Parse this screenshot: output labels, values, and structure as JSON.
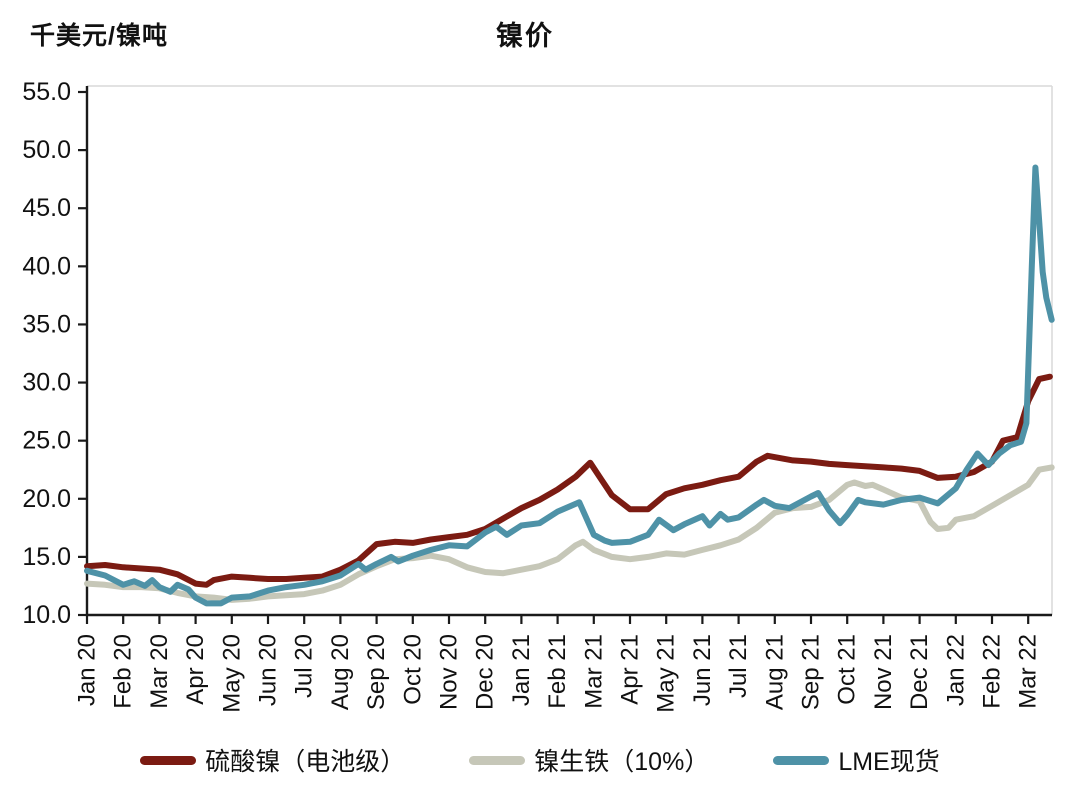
{
  "header": {
    "unit_label": "千美元/镍吨",
    "title": "镍价"
  },
  "chart_data": {
    "type": "line",
    "title": "镍价",
    "ylabel": "千美元/镍吨",
    "ylim": [
      10,
      55
    ],
    "ytick_step": 5,
    "ytick_labels": [
      "10.0",
      "15.0",
      "20.0",
      "25.0",
      "30.0",
      "35.0",
      "40.0",
      "45.0",
      "50.0",
      "55.0"
    ],
    "grid": false,
    "legend_position": "bottom",
    "x_categories": [
      "Jan 20",
      "Feb 20",
      "Mar 20",
      "Apr 20",
      "May 20",
      "Jun 20",
      "Jul 20",
      "Aug 20",
      "Sep 20",
      "Oct 20",
      "Nov 20",
      "Dec 20",
      "Jan 21",
      "Feb 21",
      "Mar 21",
      "Apr 21",
      "May 21",
      "Jun 21",
      "Jul 21",
      "Aug 21",
      "Sep 21",
      "Oct 21",
      "Nov 21",
      "Dec 21",
      "Jan 22",
      "Feb 22",
      "Mar 22"
    ],
    "x_unit": "month_index_from_Jan20",
    "series": [
      {
        "key": "nickel-sulfate-battery-grade",
        "name": "硫酸镍（电池级）",
        "color": "#7B1B12",
        "points": [
          [
            0,
            14.2
          ],
          [
            0.5,
            14.3
          ],
          [
            1,
            14.1
          ],
          [
            1.5,
            14.0
          ],
          [
            2,
            13.9
          ],
          [
            2.5,
            13.5
          ],
          [
            3,
            12.7
          ],
          [
            3.3,
            12.6
          ],
          [
            3.5,
            13.0
          ],
          [
            4,
            13.3
          ],
          [
            4.5,
            13.2
          ],
          [
            5,
            13.1
          ],
          [
            5.5,
            13.1
          ],
          [
            6,
            13.2
          ],
          [
            6.5,
            13.3
          ],
          [
            7,
            13.9
          ],
          [
            7.5,
            14.7
          ],
          [
            8,
            16.1
          ],
          [
            8.5,
            16.3
          ],
          [
            9,
            16.2
          ],
          [
            9.5,
            16.5
          ],
          [
            10,
            16.7
          ],
          [
            10.5,
            16.9
          ],
          [
            11,
            17.4
          ],
          [
            11.5,
            18.3
          ],
          [
            12,
            19.2
          ],
          [
            12.5,
            19.9
          ],
          [
            13,
            20.8
          ],
          [
            13.5,
            21.9
          ],
          [
            13.9,
            23.1
          ],
          [
            14.2,
            21.7
          ],
          [
            14.5,
            20.3
          ],
          [
            15,
            19.1
          ],
          [
            15.5,
            19.1
          ],
          [
            16,
            20.4
          ],
          [
            16.5,
            20.9
          ],
          [
            17,
            21.2
          ],
          [
            17.5,
            21.6
          ],
          [
            18,
            21.9
          ],
          [
            18.5,
            23.2
          ],
          [
            18.8,
            23.7
          ],
          [
            19.5,
            23.3
          ],
          [
            20,
            23.2
          ],
          [
            20.5,
            23.0
          ],
          [
            21,
            22.9
          ],
          [
            21.5,
            22.8
          ],
          [
            22,
            22.7
          ],
          [
            22.5,
            22.6
          ],
          [
            23,
            22.4
          ],
          [
            23.5,
            21.8
          ],
          [
            24,
            21.9
          ],
          [
            24.5,
            22.3
          ],
          [
            25,
            23.2
          ],
          [
            25.3,
            25.0
          ],
          [
            25.7,
            25.3
          ],
          [
            26,
            28.4
          ],
          [
            26.3,
            30.3
          ],
          [
            26.6,
            30.5
          ]
        ]
      },
      {
        "key": "nickel-pig-iron-10pct",
        "name": "镍生铁（10%）",
        "color": "#C6C7B8",
        "points": [
          [
            0,
            12.7
          ],
          [
            0.5,
            12.6
          ],
          [
            1,
            12.4
          ],
          [
            1.5,
            12.4
          ],
          [
            2,
            12.3
          ],
          [
            2.5,
            11.9
          ],
          [
            3,
            11.6
          ],
          [
            3.5,
            11.5
          ],
          [
            4,
            11.3
          ],
          [
            4.5,
            11.4
          ],
          [
            5,
            11.6
          ],
          [
            5.5,
            11.7
          ],
          [
            6,
            11.8
          ],
          [
            6.5,
            12.1
          ],
          [
            7,
            12.6
          ],
          [
            7.5,
            13.5
          ],
          [
            8,
            14.2
          ],
          [
            8.5,
            14.8
          ],
          [
            9,
            14.9
          ],
          [
            9.5,
            15.1
          ],
          [
            10,
            14.8
          ],
          [
            10.5,
            14.1
          ],
          [
            11,
            13.7
          ],
          [
            11.5,
            13.6
          ],
          [
            12,
            13.9
          ],
          [
            12.5,
            14.2
          ],
          [
            13,
            14.8
          ],
          [
            13.5,
            16.0
          ],
          [
            13.7,
            16.3
          ],
          [
            14,
            15.6
          ],
          [
            14.5,
            15.0
          ],
          [
            15,
            14.8
          ],
          [
            15.5,
            15.0
          ],
          [
            16,
            15.3
          ],
          [
            16.5,
            15.2
          ],
          [
            17,
            15.6
          ],
          [
            17.5,
            16.0
          ],
          [
            18,
            16.5
          ],
          [
            18.5,
            17.5
          ],
          [
            19,
            18.8
          ],
          [
            19.5,
            19.2
          ],
          [
            20,
            19.3
          ],
          [
            20.5,
            19.9
          ],
          [
            21,
            21.2
          ],
          [
            21.2,
            21.4
          ],
          [
            21.5,
            21.1
          ],
          [
            21.7,
            21.2
          ],
          [
            22,
            20.8
          ],
          [
            22.5,
            20.1
          ],
          [
            23,
            19.8
          ],
          [
            23.3,
            18.0
          ],
          [
            23.5,
            17.4
          ],
          [
            23.8,
            17.5
          ],
          [
            24,
            18.2
          ],
          [
            24.5,
            18.5
          ],
          [
            25,
            19.4
          ],
          [
            25.5,
            20.3
          ],
          [
            26,
            21.2
          ],
          [
            26.3,
            22.5
          ],
          [
            26.65,
            22.7
          ]
        ]
      },
      {
        "key": "lme-spot",
        "name": "LME现货",
        "color": "#4E92A7",
        "points": [
          [
            0,
            13.8
          ],
          [
            0.5,
            13.4
          ],
          [
            1,
            12.6
          ],
          [
            1.3,
            12.9
          ],
          [
            1.6,
            12.5
          ],
          [
            1.8,
            13.0
          ],
          [
            2,
            12.4
          ],
          [
            2.3,
            12.0
          ],
          [
            2.5,
            12.6
          ],
          [
            2.8,
            12.2
          ],
          [
            3,
            11.5
          ],
          [
            3.3,
            11.0
          ],
          [
            3.7,
            11.0
          ],
          [
            4,
            11.5
          ],
          [
            4.5,
            11.6
          ],
          [
            5,
            12.1
          ],
          [
            5.5,
            12.4
          ],
          [
            6,
            12.6
          ],
          [
            6.5,
            12.9
          ],
          [
            7,
            13.4
          ],
          [
            7.5,
            14.4
          ],
          [
            7.7,
            13.9
          ],
          [
            8,
            14.4
          ],
          [
            8.4,
            15.0
          ],
          [
            8.6,
            14.6
          ],
          [
            9,
            15.1
          ],
          [
            9.5,
            15.6
          ],
          [
            10,
            16.0
          ],
          [
            10.5,
            15.9
          ],
          [
            11,
            17.1
          ],
          [
            11.3,
            17.6
          ],
          [
            11.6,
            16.9
          ],
          [
            12,
            17.7
          ],
          [
            12.5,
            17.9
          ],
          [
            13,
            18.9
          ],
          [
            13.6,
            19.7
          ],
          [
            14,
            16.9
          ],
          [
            14.3,
            16.4
          ],
          [
            14.5,
            16.2
          ],
          [
            15,
            16.3
          ],
          [
            15.5,
            16.9
          ],
          [
            15.8,
            18.2
          ],
          [
            16.2,
            17.3
          ],
          [
            16.5,
            17.8
          ],
          [
            17,
            18.5
          ],
          [
            17.2,
            17.7
          ],
          [
            17.5,
            18.7
          ],
          [
            17.7,
            18.2
          ],
          [
            18,
            18.4
          ],
          [
            18.5,
            19.5
          ],
          [
            18.7,
            19.9
          ],
          [
            19,
            19.4
          ],
          [
            19.4,
            19.2
          ],
          [
            20,
            20.2
          ],
          [
            20.2,
            20.5
          ],
          [
            20.5,
            19.0
          ],
          [
            20.8,
            17.9
          ],
          [
            21,
            18.6
          ],
          [
            21.3,
            19.9
          ],
          [
            21.5,
            19.7
          ],
          [
            22,
            19.5
          ],
          [
            22.5,
            19.9
          ],
          [
            23,
            20.1
          ],
          [
            23.5,
            19.6
          ],
          [
            24,
            20.9
          ],
          [
            24.3,
            22.5
          ],
          [
            24.6,
            23.9
          ],
          [
            24.9,
            22.9
          ],
          [
            25.2,
            23.9
          ],
          [
            25.5,
            24.6
          ],
          [
            25.8,
            24.9
          ],
          [
            25.95,
            26.5
          ],
          [
            26.1,
            40.0
          ],
          [
            26.2,
            48.5
          ],
          [
            26.3,
            44.0
          ],
          [
            26.4,
            39.5
          ],
          [
            26.5,
            37.3
          ],
          [
            26.65,
            35.4
          ]
        ]
      }
    ]
  },
  "colors": {
    "axis": "#1a1a1a",
    "frame_light": "#d9d9d9",
    "background": "#ffffff"
  }
}
